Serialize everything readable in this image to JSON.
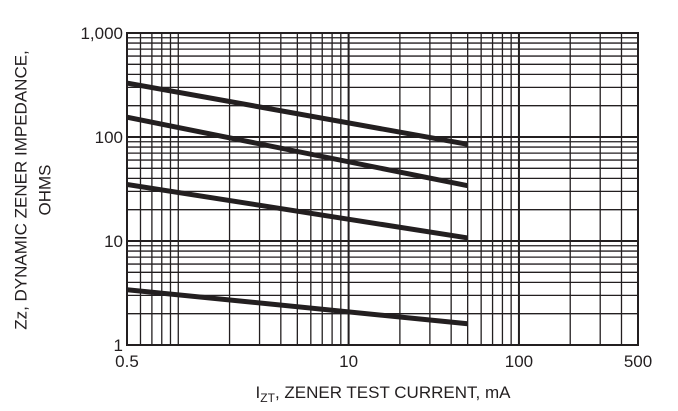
{
  "chart_data": {
    "type": "line",
    "x_label": {
      "main": "I",
      "sub": "ZT",
      "rest": ", ZENER TEST CURRENT, mA"
    },
    "y_label": [
      "Zz, DYNAMIC ZENER IMPEDANCE,",
      "OHMS"
    ],
    "x": [
      0.5,
      50
    ],
    "series": [
      {
        "color": "#231f20",
        "values": [
          330,
          85
        ]
      },
      {
        "color": "#231f20",
        "values": [
          155,
          34
        ]
      },
      {
        "color": "#231f20",
        "values": [
          35,
          10.7
        ]
      },
      {
        "color": "#231f20",
        "values": [
          3.4,
          1.6
        ]
      }
    ],
    "xlim": [
      0.5,
      500
    ],
    "xticks": [
      0.5,
      10,
      100,
      500
    ],
    "ylim": [
      1,
      1000
    ],
    "yticks": [
      1,
      10,
      100,
      {
        "value": 1000,
        "label": "1,000"
      }
    ],
    "log_x": true,
    "log_y": true,
    "grid": true
  }
}
